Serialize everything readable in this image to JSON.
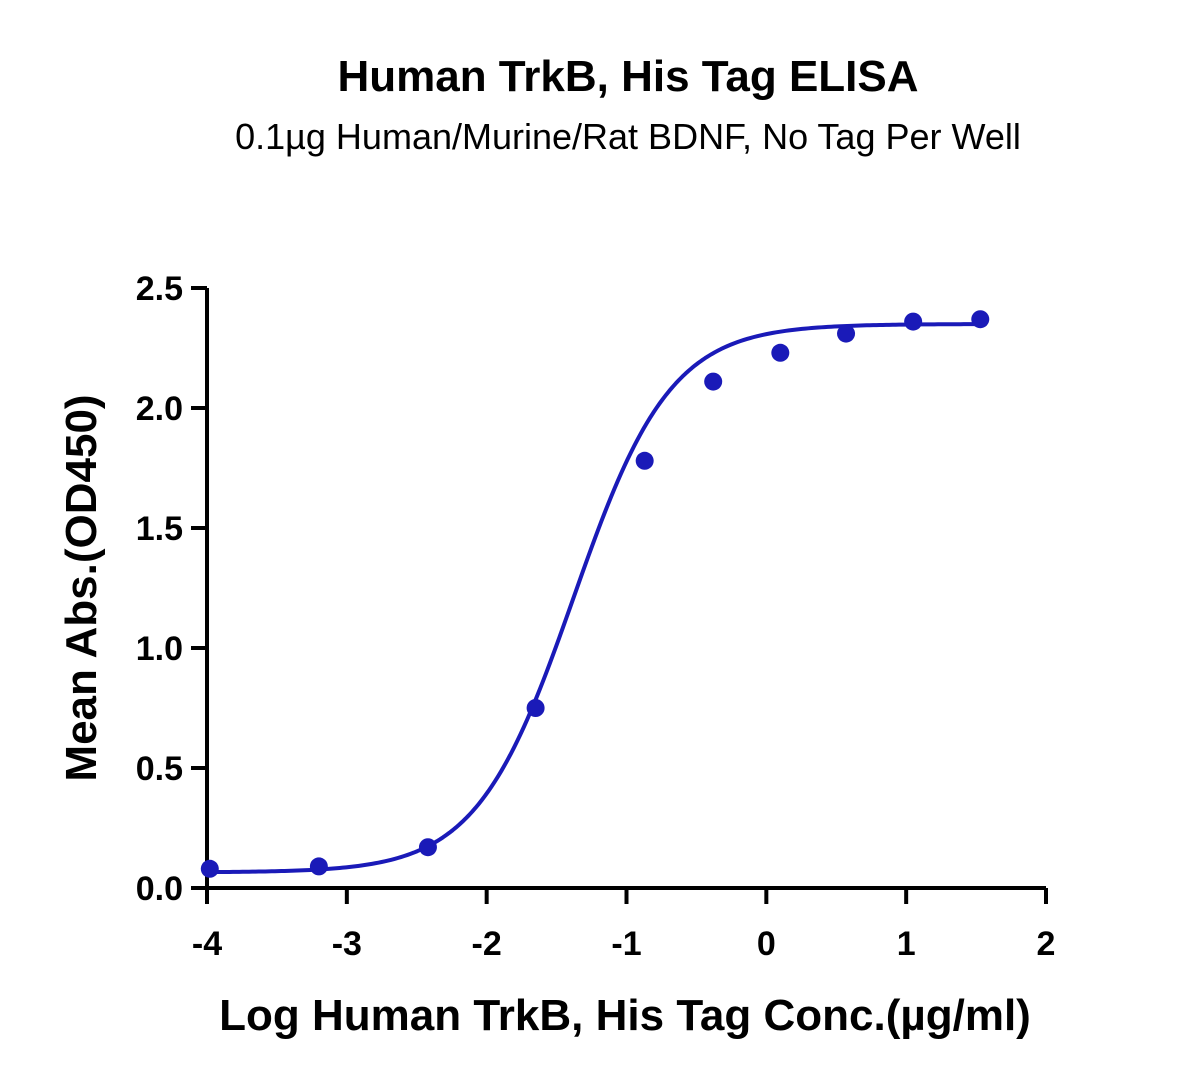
{
  "chart_data": {
    "type": "scatter",
    "title": "Human TrkB, His Tag ELISA",
    "subtitle": "0.1µg Human/Murine/Rat BDNF, No Tag Per Well",
    "xlabel": "Log Human TrkB, His Tag Conc.(µg/ml)",
    "ylabel": "Mean Abs.(OD450)",
    "xlim": [
      -4,
      2
    ],
    "ylim": [
      0,
      2.5
    ],
    "xticks": [
      -4,
      -3,
      -2,
      -1,
      0,
      1,
      2
    ],
    "yticks": [
      0,
      0.5,
      1,
      1.5,
      2,
      2.5
    ],
    "xtick_labels": [
      "-4",
      "-3",
      "-2",
      "-1",
      "0",
      "1",
      "2"
    ],
    "ytick_labels": [
      "0.0",
      "0.5",
      "1.0",
      "1.5",
      "2.0",
      "2.5"
    ],
    "grid": false,
    "series": [
      {
        "color": "#1a1ab8",
        "x": [
          -3.98,
          -3.2,
          -2.42,
          -1.65,
          -0.87,
          -0.38,
          0.1,
          0.57,
          1.05,
          1.53
        ],
        "y": [
          0.08,
          0.09,
          0.17,
          0.75,
          1.78,
          2.11,
          2.23,
          2.31,
          2.36,
          2.37
        ],
        "fit": {
          "type": "4PL",
          "bottom": 0.065,
          "top": 2.35,
          "log_ec50": -1.38,
          "hill_slope": 1.25,
          "x_range": [
            -4,
            1.55
          ]
        }
      }
    ]
  }
}
